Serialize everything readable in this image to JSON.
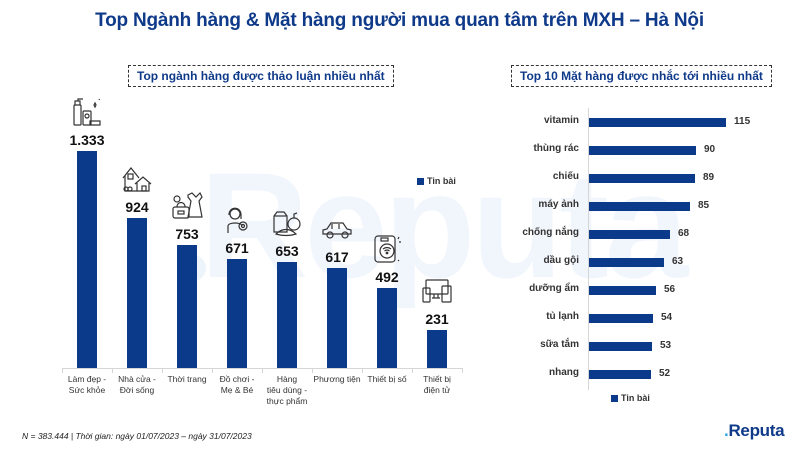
{
  "title": "Top Ngành hàng & Mặt hàng người mua quan tâm trên MXH – Hà Nội",
  "watermark": "Reputa",
  "left_panel": {
    "heading": "Top ngành hàng được thảo luận nhiều nhất",
    "legend": "Tin bài",
    "categories": [
      {
        "label_lines": [
          "Làm đẹp -",
          "Sức khỏe"
        ],
        "value_label": "1.333",
        "icon": "cosmetics-icon"
      },
      {
        "label_lines": [
          "Nhà cửa -",
          "Đời sống"
        ],
        "value_label": "924",
        "icon": "house-icon"
      },
      {
        "label_lines": [
          "Thời trang"
        ],
        "value_label": "753",
        "icon": "clothing-bag-icon"
      },
      {
        "label_lines": [
          "Đồ chơi -",
          "Mẹ & Bé"
        ],
        "value_label": "671",
        "icon": "mother-baby-icon"
      },
      {
        "label_lines": [
          "Hàng",
          "tiêu dùng -",
          "thực phẩm"
        ],
        "value_label": "653",
        "icon": "groceries-icon"
      },
      {
        "label_lines": [
          "Phương tiện"
        ],
        "value_label": "617",
        "icon": "car-icon"
      },
      {
        "label_lines": [
          "Thiết bị số"
        ],
        "value_label": "492",
        "icon": "smartphone-wifi-icon"
      },
      {
        "label_lines": [
          "Thiết bị",
          "điện tử"
        ],
        "value_label": "231",
        "icon": "electronics-devices-icon"
      }
    ]
  },
  "right_panel": {
    "heading": "Top 10 Mặt hàng được nhắc tới nhiều nhất",
    "legend": "Tin bài",
    "items": [
      {
        "label": "vitamin",
        "value": "115"
      },
      {
        "label": "thùng rác",
        "value": "90"
      },
      {
        "label": "chiếu",
        "value": "89"
      },
      {
        "label": "máy ảnh",
        "value": "85"
      },
      {
        "label": "chống nắng",
        "value": "68"
      },
      {
        "label": "dầu gội",
        "value": "63"
      },
      {
        "label": "dưỡng ẩm",
        "value": "56"
      },
      {
        "label": "tủ lạnh",
        "value": "54"
      },
      {
        "label": "sữa tắm",
        "value": "53"
      },
      {
        "label": "nhang",
        "value": "52"
      }
    ]
  },
  "footer": "N = 383.444 | Thời gian: ngày 01/07/2023 – ngày 31/07/2023",
  "logo": {
    "dot": ".",
    "text": "Reputa"
  },
  "colors": {
    "bar": "#0b3a8a",
    "title": "#0f3a8a",
    "logo_dot": "#2aa7df"
  },
  "chart_data": [
    {
      "type": "bar",
      "title": "Top ngành hàng được thảo luận nhiều nhất",
      "categories": [
        "Làm đẹp - Sức khỏe",
        "Nhà cửa - Đời sống",
        "Thời trang",
        "Đồ chơi - Mẹ & Bé",
        "Hàng tiêu dùng - thực phẩm",
        "Phương tiện",
        "Thiết bị số",
        "Thiết bị điện tử"
      ],
      "series": [
        {
          "name": "Tin bài",
          "values": [
            1333,
            924,
            753,
            671,
            653,
            617,
            492,
            231
          ]
        }
      ],
      "xlabel": "",
      "ylabel": "",
      "ylim": [
        0,
        1400
      ],
      "grid": false,
      "legend_position": "right"
    },
    {
      "type": "bar",
      "orientation": "horizontal",
      "title": "Top 10 Mặt hàng được nhắc tới nhiều nhất",
      "categories": [
        "vitamin",
        "thùng rác",
        "chiếu",
        "máy ảnh",
        "chống nắng",
        "dầu gội",
        "dưỡng ẩm",
        "tủ lạnh",
        "sữa tắm",
        "nhang"
      ],
      "series": [
        {
          "name": "Tin bài",
          "values": [
            115,
            90,
            89,
            85,
            68,
            63,
            56,
            54,
            53,
            52
          ]
        }
      ],
      "xlabel": "",
      "ylabel": "",
      "xlim": [
        0,
        120
      ],
      "grid": false,
      "legend_position": "bottom"
    }
  ]
}
